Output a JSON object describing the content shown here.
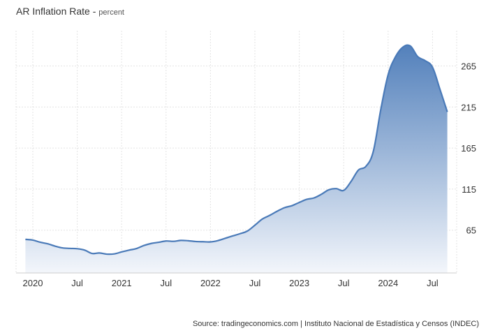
{
  "chart_data": {
    "type": "area",
    "title": "AR Inflation Rate",
    "subtitle": "percent",
    "xlabel": "",
    "ylabel": "",
    "x_tick_labels": [
      "2020",
      "Jul",
      "2021",
      "Jul",
      "2022",
      "Jul",
      "2023",
      "Jul",
      "2024",
      "Jul"
    ],
    "y_ticks": [
      65,
      115,
      165,
      215,
      265
    ],
    "ylim": [
      15,
      300
    ],
    "grid": true,
    "legend": "none",
    "series": [
      {
        "color": "#4a7ab8",
        "fill_top": "#4a7ab8",
        "fill_bottom": "#f3f6fb",
        "x": [
          "2019-12",
          "2020-01",
          "2020-02",
          "2020-03",
          "2020-04",
          "2020-05",
          "2020-06",
          "2020-07",
          "2020-08",
          "2020-09",
          "2020-10",
          "2020-11",
          "2020-12",
          "2021-01",
          "2021-02",
          "2021-03",
          "2021-04",
          "2021-05",
          "2021-06",
          "2021-07",
          "2021-08",
          "2021-09",
          "2021-10",
          "2021-11",
          "2021-12",
          "2022-01",
          "2022-02",
          "2022-03",
          "2022-04",
          "2022-05",
          "2022-06",
          "2022-07",
          "2022-08",
          "2022-09",
          "2022-10",
          "2022-11",
          "2022-12",
          "2023-01",
          "2023-02",
          "2023-03",
          "2023-04",
          "2023-05",
          "2023-06",
          "2023-07",
          "2023-08",
          "2023-09",
          "2023-10",
          "2023-11",
          "2023-12",
          "2024-01",
          "2024-02",
          "2024-03",
          "2024-04",
          "2024-05",
          "2024-06",
          "2024-07",
          "2024-08",
          "2024-09"
        ],
        "values": [
          53.8,
          52.9,
          50.3,
          48.4,
          45.6,
          43.4,
          42.8,
          42.4,
          40.7,
          36.6,
          37.2,
          35.8,
          36.1,
          38.5,
          40.7,
          42.6,
          46.3,
          48.8,
          50.2,
          51.8,
          51.4,
          52.5,
          52.1,
          51.2,
          50.9,
          50.7,
          52.3,
          55.1,
          58.0,
          60.7,
          64.0,
          71.0,
          78.5,
          83.0,
          88.0,
          92.4,
          94.8,
          98.8,
          102.5,
          104.3,
          108.8,
          114.2,
          115.6,
          113.4,
          124.4,
          138.3,
          142.7,
          160.9,
          211.4,
          254.2,
          276.2,
          287.9,
          289.4,
          276.4,
          271.5,
          263.4,
          236.7,
          209.0
        ]
      }
    ],
    "source": "Source: tradingeconomics.com | Instituto Nacional de Estadística y Censos (INDEC)"
  }
}
